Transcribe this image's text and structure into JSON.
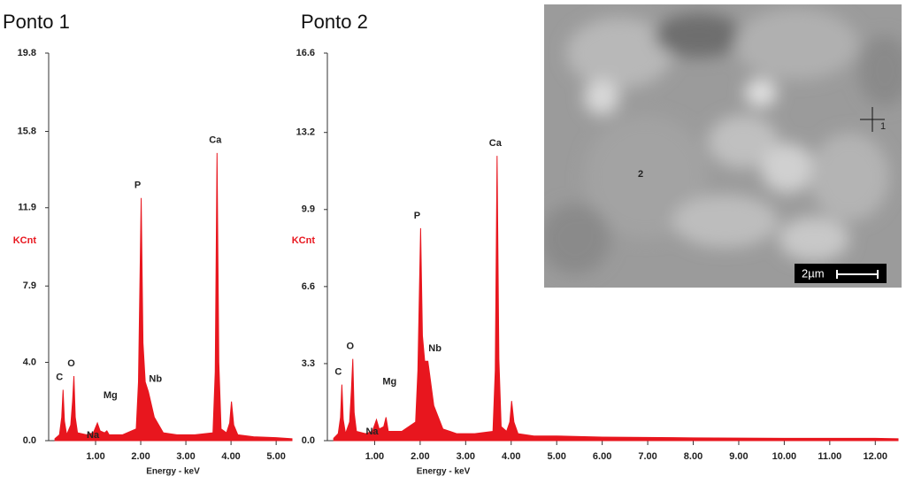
{
  "chart_data": [
    {
      "type": "area",
      "title": "Ponto 1",
      "ylabel": "KCnt",
      "xlabel": "Energy - keV",
      "color": "#e8161e",
      "x": [
        0.1,
        0.2,
        0.25,
        0.28,
        0.31,
        0.36,
        0.45,
        0.49,
        0.52,
        0.55,
        0.6,
        0.8,
        0.95,
        1.04,
        1.1,
        1.2,
        1.25,
        1.3,
        1.6,
        1.9,
        1.95,
        2.01,
        2.05,
        2.1,
        2.17,
        2.3,
        2.5,
        2.8,
        3.2,
        3.6,
        3.65,
        3.69,
        3.73,
        3.78,
        3.9,
        3.97,
        4.01,
        4.06,
        4.15,
        4.5,
        5.0,
        5.35
      ],
      "values": [
        0.1,
        0.3,
        1.2,
        2.6,
        1.0,
        0.3,
        0.8,
        2.0,
        3.3,
        1.2,
        0.4,
        0.3,
        0.4,
        0.9,
        0.5,
        0.4,
        0.5,
        0.3,
        0.3,
        0.6,
        3.0,
        12.4,
        5.0,
        3.0,
        2.5,
        1.2,
        0.4,
        0.3,
        0.3,
        0.4,
        3.5,
        14.7,
        4.0,
        0.6,
        0.4,
        0.9,
        2.0,
        0.8,
        0.3,
        0.2,
        0.15,
        0.1
      ],
      "annotations": [
        {
          "text": "C",
          "x": 0.28
        },
        {
          "text": "O",
          "x": 0.52
        },
        {
          "text": "Na",
          "x": 1.04
        },
        {
          "text": "Mg",
          "x": 1.25
        },
        {
          "text": "P",
          "x": 2.01
        },
        {
          "text": "Nb",
          "x": 2.17
        },
        {
          "text": "Ca",
          "x": 3.69
        }
      ],
      "xlim": [
        0,
        5.35
      ],
      "xticks": [
        {
          "value": 1,
          "label": "1.00"
        },
        {
          "value": 2,
          "label": "2.00"
        },
        {
          "value": 3,
          "label": "3.00"
        },
        {
          "value": 4,
          "label": "4.00"
        },
        {
          "value": 5,
          "label": "5.00"
        }
      ],
      "ylim": [
        0,
        19.8
      ],
      "yticks": [
        {
          "value": 0,
          "label": "0.0"
        },
        {
          "value": 4,
          "label": "4.0"
        },
        {
          "value": 7.9,
          "label": "7.9"
        },
        {
          "value": 11.9,
          "label": "11.9"
        },
        {
          "value": 15.8,
          "label": "15.8"
        },
        {
          "value": 19.8,
          "label": "19.8"
        }
      ]
    },
    {
      "type": "area",
      "title": "Ponto 2",
      "ylabel": "KCnt",
      "xlabel": "Energy - keV",
      "color": "#e8161e",
      "x": [
        0.1,
        0.2,
        0.25,
        0.28,
        0.31,
        0.36,
        0.45,
        0.49,
        0.52,
        0.55,
        0.6,
        0.8,
        0.95,
        1.04,
        1.1,
        1.2,
        1.25,
        1.3,
        1.6,
        1.9,
        1.95,
        2.01,
        2.05,
        2.1,
        2.17,
        2.3,
        2.5,
        2.8,
        3.2,
        3.6,
        3.65,
        3.69,
        3.73,
        3.78,
        3.9,
        3.97,
        4.01,
        4.06,
        4.15,
        4.5,
        5.0,
        6.0,
        8.0,
        10.0,
        12.0,
        12.5
      ],
      "values": [
        0.1,
        0.3,
        1.0,
        2.4,
        0.9,
        0.3,
        0.8,
        2.2,
        3.5,
        1.2,
        0.4,
        0.3,
        0.4,
        0.9,
        0.5,
        0.6,
        1.0,
        0.4,
        0.4,
        0.8,
        3.0,
        9.1,
        4.5,
        3.4,
        3.4,
        1.5,
        0.5,
        0.3,
        0.3,
        0.4,
        3.0,
        12.2,
        3.5,
        0.6,
        0.4,
        0.8,
        1.7,
        0.8,
        0.3,
        0.2,
        0.2,
        0.15,
        0.12,
        0.1,
        0.1,
        0.08
      ],
      "annotations": [
        {
          "text": "C",
          "x": 0.28
        },
        {
          "text": "O",
          "x": 0.52
        },
        {
          "text": "Na",
          "x": 1.04
        },
        {
          "text": "Mg",
          "x": 1.25
        },
        {
          "text": "P",
          "x": 2.01
        },
        {
          "text": "Nb",
          "x": 2.17
        },
        {
          "text": "Ca",
          "x": 3.69
        }
      ],
      "xlim": [
        0,
        12.5
      ],
      "xticks": [
        {
          "value": 1,
          "label": "1.00"
        },
        {
          "value": 2,
          "label": "2.00"
        },
        {
          "value": 3,
          "label": "3.00"
        },
        {
          "value": 4,
          "label": "4.00"
        },
        {
          "value": 5,
          "label": "5.00"
        },
        {
          "value": 6,
          "label": "6.00"
        },
        {
          "value": 7,
          "label": "7.00"
        },
        {
          "value": 8,
          "label": "8.00"
        },
        {
          "value": 9,
          "label": "9.00"
        },
        {
          "value": 10,
          "label": "10.00"
        },
        {
          "value": 11,
          "label": "11.00"
        },
        {
          "value": 12,
          "label": "12.00"
        }
      ],
      "ylim": [
        0,
        16.6
      ],
      "yticks": [
        {
          "value": 0,
          "label": "0.0"
        },
        {
          "value": 3.3,
          "label": "3.3"
        },
        {
          "value": 6.6,
          "label": "6.6"
        },
        {
          "value": 9.9,
          "label": "9.9"
        },
        {
          "value": 13.2,
          "label": "13.2"
        },
        {
          "value": 16.6,
          "label": "16.6"
        }
      ]
    }
  ],
  "image": {
    "labels": [
      "2",
      "1"
    ],
    "scale_bar": "2µm"
  }
}
